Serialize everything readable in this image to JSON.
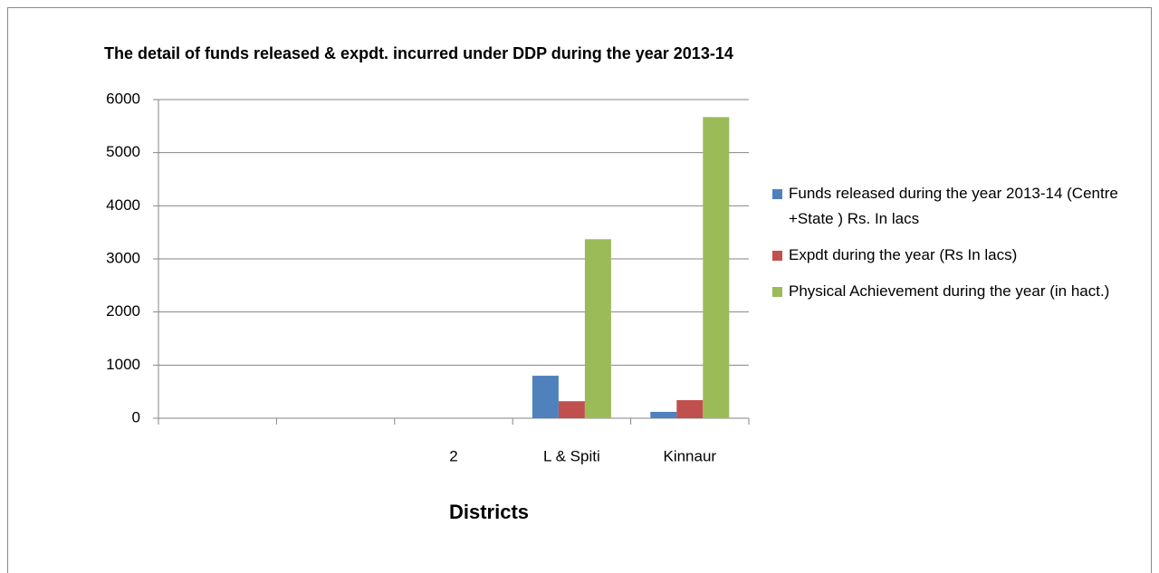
{
  "chart_data": {
    "type": "bar",
    "title": "The detail of funds released & expdt. incurred under DDP during the year 2013-14",
    "x_label": "Districts",
    "categories": [
      null,
      null,
      "2",
      "L & Spiti",
      "Kinnaur"
    ],
    "series": [
      {
        "name": "Funds released during the year 2013-14 (Centre +State ) Rs. In lacs",
        "color": "#4f81bd",
        "values": [
          null,
          null,
          null,
          800,
          120
        ]
      },
      {
        "name": "Expdt during the year (Rs In lacs)",
        "color": "#c0504d",
        "values": [
          null,
          null,
          null,
          320,
          340
        ]
      },
      {
        "name": "Physical Achievement during the year (in hact.)",
        "color": "#9bbb59",
        "values": [
          null,
          null,
          null,
          3370,
          5670
        ]
      }
    ],
    "ylim": [
      0,
      6000
    ],
    "yticks": [
      0,
      1000,
      2000,
      3000,
      4000,
      5000,
      6000
    ],
    "grid": true,
    "legend": "right"
  }
}
